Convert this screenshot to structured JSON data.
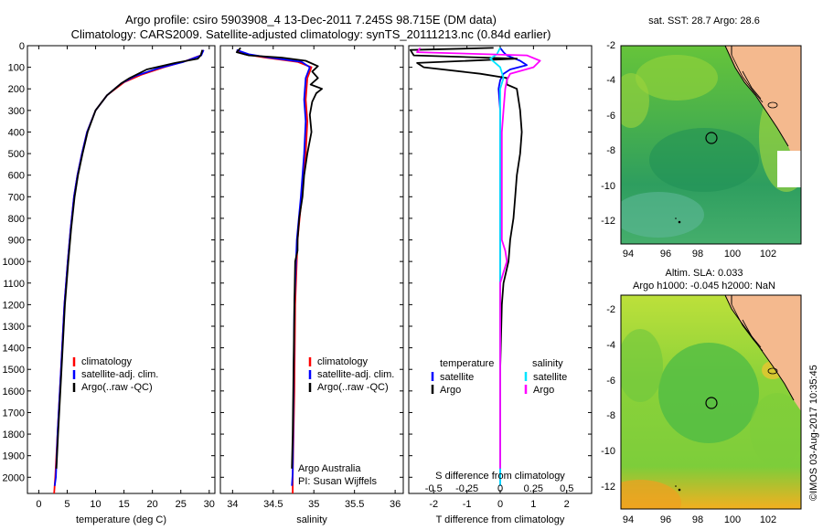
{
  "header": {
    "title_line1": "Argo profile: csiro 5903908_4 13-Dec-2011 7.245S 98.715E (DM data)",
    "title_line2": "Climatology: CARS2009. Satellite-adjusted climatology: synTS_20111213.nc (0.84d earlier)"
  },
  "colors": {
    "climatology": "#ff0000",
    "satellite": "#0000ff",
    "argo": "#000000",
    "sat_s": "#00e5ff",
    "argo_s": "#ff00ff",
    "land": "#f4b98e"
  },
  "chart_data": [
    {
      "type": "line",
      "xlabel": "temperature (deg C)",
      "ylim": [
        0,
        2075
      ],
      "xlim": [
        -2,
        31
      ],
      "xticks": [
        0,
        5,
        10,
        15,
        20,
        25,
        30
      ],
      "yticks": [
        0,
        100,
        200,
        300,
        400,
        500,
        600,
        700,
        800,
        900,
        1000,
        1100,
        1200,
        1300,
        1400,
        1500,
        1600,
        1700,
        1800,
        1900,
        2000
      ],
      "legend": [
        "climatology",
        "satellite-adj. clim.",
        "Argo(..raw -QC)"
      ],
      "series": [
        {
          "name": "climatology",
          "color": "#ff0000",
          "points": [
            [
              29,
              20
            ],
            [
              28.5,
              45
            ],
            [
              26,
              70
            ],
            [
              22,
              100
            ],
            [
              18,
              135
            ],
            [
              15,
              170
            ],
            [
              12,
              230
            ],
            [
              10,
              300
            ],
            [
              8.5,
              400
            ],
            [
              7.6,
              500
            ],
            [
              6.8,
              600
            ],
            [
              6.2,
              700
            ],
            [
              5.6,
              850
            ],
            [
              5.1,
              1000
            ],
            [
              4.5,
              1200
            ],
            [
              3.9,
              1500
            ],
            [
              3.3,
              1800
            ],
            [
              2.9,
              2000
            ],
            [
              2.7,
              2075
            ]
          ]
        },
        {
          "name": "satellite-adj. clim.",
          "color": "#0000ff",
          "points": [
            [
              29,
              20
            ],
            [
              28.6,
              45
            ],
            [
              25.5,
              75
            ],
            [
              21,
              105
            ],
            [
              17,
              140
            ],
            [
              14.5,
              175
            ],
            [
              12,
              230
            ],
            [
              10,
              300
            ],
            [
              8.5,
              400
            ],
            [
              7.6,
              500
            ],
            [
              6.8,
              600
            ],
            [
              6.2,
              700
            ],
            [
              5.6,
              850
            ],
            [
              5.1,
              1000
            ],
            [
              4.5,
              1200
            ],
            [
              3.9,
              1500
            ],
            [
              3.3,
              1800
            ],
            [
              3,
              2000
            ],
            [
              2.8,
              2040
            ]
          ]
        },
        {
          "name": "Argo(..raw -QC)",
          "color": "#000000",
          "points": [
            [
              28.8,
              20
            ],
            [
              28.5,
              45
            ],
            [
              28,
              60
            ],
            [
              24,
              80
            ],
            [
              19,
              110
            ],
            [
              16,
              150
            ],
            [
              14.5,
              175
            ],
            [
              12,
              230
            ],
            [
              10,
              300
            ],
            [
              8.6,
              400
            ],
            [
              7.7,
              500
            ],
            [
              6.9,
              600
            ],
            [
              6.3,
              700
            ],
            [
              5.7,
              850
            ],
            [
              5.2,
              1000
            ],
            [
              4.6,
              1200
            ],
            [
              4,
              1500
            ],
            [
              3.4,
              1800
            ],
            [
              3.1,
              1960
            ]
          ]
        }
      ]
    },
    {
      "type": "line",
      "xlabel": "salinity",
      "ylim": [
        0,
        2075
      ],
      "xlim": [
        33.85,
        36.1
      ],
      "xticks": [
        34,
        34.5,
        35,
        35.5,
        36
      ],
      "legend": [
        "climatology",
        "satellite-adj. clim.",
        "Argo(..raw -QC)"
      ],
      "annotations": [
        "Argo Australia",
        "PI: Susan Wijffels"
      ],
      "series": [
        {
          "name": "climatology",
          "color": "#ff0000",
          "points": [
            [
              34.05,
              20
            ],
            [
              34.15,
              40
            ],
            [
              34.4,
              55
            ],
            [
              34.8,
              75
            ],
            [
              34.97,
              100
            ],
            [
              34.92,
              150
            ],
            [
              34.9,
              250
            ],
            [
              34.92,
              350
            ],
            [
              34.9,
              500
            ],
            [
              34.85,
              700
            ],
            [
              34.8,
              900
            ],
            [
              34.77,
              1200
            ],
            [
              34.76,
              1600
            ],
            [
              34.74,
              2000
            ],
            [
              34.74,
              2075
            ]
          ]
        },
        {
          "name": "satellite-adj. clim.",
          "color": "#0000ff",
          "points": [
            [
              34.05,
              20
            ],
            [
              34.2,
              40
            ],
            [
              34.45,
              55
            ],
            [
              34.85,
              75
            ],
            [
              34.95,
              100
            ],
            [
              34.9,
              150
            ],
            [
              34.88,
              250
            ],
            [
              34.9,
              350
            ],
            [
              34.88,
              500
            ],
            [
              34.84,
              700
            ],
            [
              34.79,
              900
            ],
            [
              34.76,
              1200
            ],
            [
              34.75,
              1600
            ],
            [
              34.74,
              1980
            ],
            [
              34.73,
              2040
            ]
          ]
        },
        {
          "name": "Argo(..raw -QC)",
          "color": "#000000",
          "points": [
            [
              34.1,
              10
            ],
            [
              34.05,
              30
            ],
            [
              34.2,
              45
            ],
            [
              34.6,
              55
            ],
            [
              34.9,
              70
            ],
            [
              35.05,
              95
            ],
            [
              34.98,
              120
            ],
            [
              35.05,
              150
            ],
            [
              34.96,
              180
            ],
            [
              35.1,
              200
            ],
            [
              35.03,
              220
            ],
            [
              34.98,
              260
            ],
            [
              34.95,
              320
            ],
            [
              34.97,
              400
            ],
            [
              34.92,
              500
            ],
            [
              34.88,
              600
            ],
            [
              34.86,
              700
            ],
            [
              34.82,
              800
            ],
            [
              34.8,
              900
            ],
            [
              34.8,
              950
            ],
            [
              34.77,
              1000
            ],
            [
              34.76,
              1200
            ],
            [
              34.75,
              1500
            ],
            [
              34.74,
              1800
            ],
            [
              34.73,
              1960
            ]
          ]
        }
      ]
    },
    {
      "type": "line",
      "xlabel": "T difference from climatology",
      "xlabel_top": "S difference from climatology",
      "ylim": [
        0,
        2075
      ],
      "xlim": [
        -2.75,
        2.75
      ],
      "xticks": [
        -2,
        -1,
        0,
        1,
        2
      ],
      "xticklabels_top": [
        "-0.5",
        "-0.25",
        "0",
        "0.25",
        "0.5"
      ],
      "legend": {
        "temperature": "temperature",
        "salinity": "salinity",
        "satellite": "satellite",
        "argo": "Argo"
      },
      "series": [
        {
          "name": "temperature satellite",
          "color": "#0000ff",
          "points": [
            [
              0,
              10
            ],
            [
              0.1,
              30
            ],
            [
              0.2,
              45
            ],
            [
              0.6,
              70
            ],
            [
              0.8,
              90
            ],
            [
              0.3,
              110
            ],
            [
              0.1,
              130
            ],
            [
              0,
              160
            ],
            [
              -0.05,
              200
            ],
            [
              0,
              300
            ],
            [
              0,
              500
            ],
            [
              0,
              1000
            ],
            [
              0,
              1500
            ],
            [
              0,
              2040
            ]
          ]
        },
        {
          "name": "temperature Argo",
          "color": "#000000",
          "points": [
            [
              -0.2,
              10
            ],
            [
              -2.7,
              20
            ],
            [
              -2.6,
              45
            ],
            [
              0.5,
              60
            ],
            [
              -2.5,
              80
            ],
            [
              -2.3,
              100
            ],
            [
              -0.6,
              130
            ],
            [
              0.2,
              150
            ],
            [
              0.2,
              180
            ],
            [
              0.5,
              200
            ],
            [
              0.6,
              300
            ],
            [
              0.65,
              400
            ],
            [
              0.6,
              500
            ],
            [
              0.5,
              600
            ],
            [
              0.45,
              700
            ],
            [
              0.4,
              800
            ],
            [
              0.3,
              900
            ],
            [
              0.25,
              1000
            ],
            [
              0.1,
              1100
            ],
            [
              0.05,
              1200
            ],
            [
              0,
              1500
            ],
            [
              0,
              1960
            ]
          ]
        },
        {
          "name": "salinity satellite",
          "color": "#00e5ff",
          "points": [
            [
              0,
              10
            ],
            [
              -0.1,
              40
            ],
            [
              -0.3,
              60
            ],
            [
              0,
              100
            ],
            [
              0.1,
              150
            ],
            [
              0,
              200
            ],
            [
              0,
              400
            ],
            [
              0,
              700
            ],
            [
              0,
              1000
            ],
            [
              0,
              1500
            ],
            [
              0,
              2040
            ]
          ]
        },
        {
          "name": "salinity Argo",
          "color": "#ff00ff",
          "points": [
            [
              -2.4,
              10
            ],
            [
              -2.5,
              30
            ],
            [
              0.8,
              45
            ],
            [
              1.2,
              70
            ],
            [
              1.0,
              100
            ],
            [
              0.3,
              130
            ],
            [
              0.2,
              160
            ],
            [
              0.15,
              200
            ],
            [
              0.1,
              300
            ],
            [
              0.05,
              400
            ],
            [
              0.05,
              600
            ],
            [
              0.05,
              800
            ],
            [
              0.05,
              900
            ],
            [
              0.15,
              950
            ],
            [
              0.2,
              1000
            ],
            [
              0.1,
              1050
            ],
            [
              0,
              1100
            ],
            [
              0,
              1500
            ],
            [
              0,
              1960
            ]
          ]
        }
      ]
    }
  ],
  "maps": {
    "top": {
      "title": "sat. SST: 28.7 Argo: 28.6",
      "xticks": [
        "94",
        "96",
        "98",
        "100",
        "102"
      ],
      "yticks": [
        "-2",
        "-4",
        "-6",
        "-8",
        "-10",
        "-12"
      ]
    },
    "bottom": {
      "title_line1": "Altim. SLA: 0.033",
      "title_line2": "Argo h1000: -0.045 h2000: NaN",
      "xticks": [
        "94",
        "96",
        "98",
        "100",
        "102"
      ],
      "yticks": [
        "-2",
        "-4",
        "-6",
        "-8",
        "-10",
        "-12"
      ]
    }
  },
  "footer": {
    "credit": "©IMOS 03-Aug-2017 10:35:45"
  }
}
